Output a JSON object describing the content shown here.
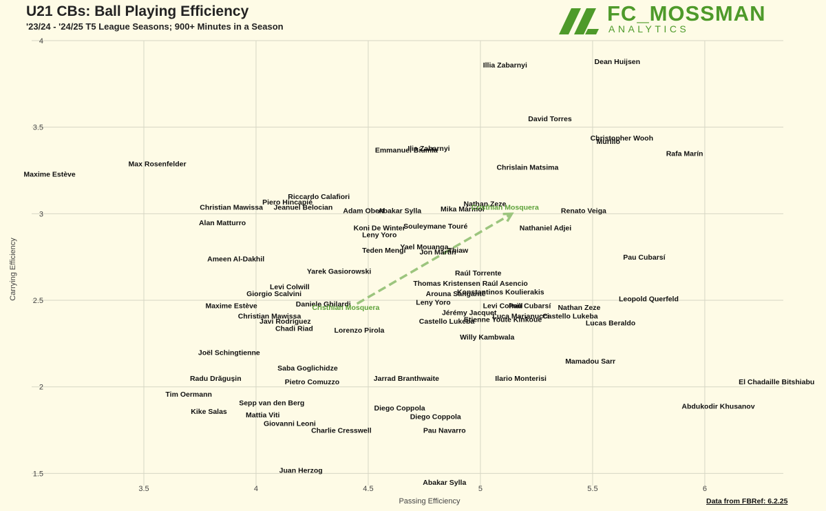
{
  "header": {
    "title": "U21 CBs: Ball Playing Efficiency",
    "subtitle": "'23/24 - '24/25 T5 League Seasons; 900+ Minutes in a Season"
  },
  "logo": {
    "main": "FC_MOSSMAN",
    "sub": "ANALYTICS",
    "color": "#4e9a2a"
  },
  "source": "Data from FBRef: 6.2.25",
  "colors": {
    "background": "#fefbe6",
    "grid": "#d6d6c4",
    "highlight": "#5da23a",
    "arrow": "#9cc57e"
  },
  "chart_data": {
    "type": "scatter",
    "title": "U21 CBs: Ball Playing Efficiency",
    "xlabel": "Passing Efficiency",
    "ylabel": "Carrying Efficiency",
    "xlim": [
      3.0,
      6.35
    ],
    "ylim": [
      1.43,
      4.0
    ],
    "xticks": [
      3.5,
      4,
      4.5,
      5,
      5.5,
      6
    ],
    "yticks": [
      1.5,
      2,
      2.5,
      3,
      3.5,
      4
    ],
    "grid": true,
    "points": [
      {
        "name": "Illia Zabarnyi",
        "x": 5.11,
        "y": 3.86
      },
      {
        "name": "Dean Huijsen",
        "x": 5.61,
        "y": 3.88
      },
      {
        "name": "David Torres",
        "x": 5.31,
        "y": 3.55
      },
      {
        "name": "Christopher Wooh",
        "x": 5.63,
        "y": 3.44
      },
      {
        "name": "Murillo",
        "x": 5.57,
        "y": 3.42
      },
      {
        "name": "Rafa Marín",
        "x": 5.91,
        "y": 3.35
      },
      {
        "name": "Emmanuel Biumla",
        "x": 4.67,
        "y": 3.37
      },
      {
        "name": "Ilia Zabarnyi",
        "x": 4.77,
        "y": 3.38
      },
      {
        "name": "Chrislain Matsima",
        "x": 5.21,
        "y": 3.27
      },
      {
        "name": "Max Rosenfelder",
        "x": 3.56,
        "y": 3.29
      },
      {
        "name": "Maxime Estève",
        "x": 3.08,
        "y": 3.23
      },
      {
        "name": "Riccardo Calafiori",
        "x": 4.28,
        "y": 3.1
      },
      {
        "name": "Piero Hincapié",
        "x": 4.14,
        "y": 3.07
      },
      {
        "name": "Jeanuel Belocian",
        "x": 4.21,
        "y": 3.04
      },
      {
        "name": "Christian Mawissa",
        "x": 3.89,
        "y": 3.04
      },
      {
        "name": "Adam Obert",
        "x": 4.48,
        "y": 3.02
      },
      {
        "name": "Abakar Sylla",
        "x": 4.64,
        "y": 3.02
      },
      {
        "name": "Mika Mármol",
        "x": 4.92,
        "y": 3.03
      },
      {
        "name": "Nathan Zeze",
        "x": 5.02,
        "y": 3.06
      },
      {
        "name": "Cristhian Mosquera",
        "x": 5.11,
        "y": 3.04,
        "highlight": true
      },
      {
        "name": "Renato Veiga",
        "x": 5.46,
        "y": 3.02
      },
      {
        "name": "Alan Matturro",
        "x": 3.85,
        "y": 2.95
      },
      {
        "name": "Koni De Winter",
        "x": 4.55,
        "y": 2.92
      },
      {
        "name": "Souleymane Touré",
        "x": 4.8,
        "y": 2.93
      },
      {
        "name": "Leny Yoro",
        "x": 4.55,
        "y": 2.88
      },
      {
        "name": "Nathaniel Adjei",
        "x": 5.29,
        "y": 2.92
      },
      {
        "name": "Teden Mengi",
        "x": 4.57,
        "y": 2.79
      },
      {
        "name": "Yael Mouanga",
        "x": 4.75,
        "y": 2.81
      },
      {
        "name": "Jon Martín",
        "x": 4.81,
        "y": 2.78
      },
      {
        "name": "Thiaw",
        "x": 4.9,
        "y": 2.79
      },
      {
        "name": "Ameen Al-Dakhil",
        "x": 3.91,
        "y": 2.74
      },
      {
        "name": "Pau Cubarsí",
        "x": 5.73,
        "y": 2.75
      },
      {
        "name": "Yarek Gasiorowski",
        "x": 4.37,
        "y": 2.67
      },
      {
        "name": "Raúl Torrente",
        "x": 4.99,
        "y": 2.66
      },
      {
        "name": "Raúl Asencio",
        "x": 5.11,
        "y": 2.6
      },
      {
        "name": "Thomas Kristensen",
        "x": 4.85,
        "y": 2.6
      },
      {
        "name": "Levi Colwill",
        "x": 4.15,
        "y": 2.58
      },
      {
        "name": "Konstantinos Koulierakis",
        "x": 5.09,
        "y": 2.55
      },
      {
        "name": "Giorgio Scalvini",
        "x": 4.08,
        "y": 2.54
      },
      {
        "name": "Arouna Sanganté",
        "x": 4.89,
        "y": 2.54
      },
      {
        "name": "Leopold Querfeld",
        "x": 5.75,
        "y": 2.51
      },
      {
        "name": "Daniele Ghilardi",
        "x": 4.3,
        "y": 2.48
      },
      {
        "name": "Leny Yoro",
        "x": 4.79,
        "y": 2.49
      },
      {
        "name": "Levi Colwill",
        "x": 5.1,
        "y": 2.47
      },
      {
        "name": "Pau Cubarsí",
        "x": 5.22,
        "y": 2.47
      },
      {
        "name": "Maxime Estève",
        "x": 3.89,
        "y": 2.47
      },
      {
        "name": "Cristhian Mosquera",
        "x": 4.4,
        "y": 2.46,
        "highlight": true
      },
      {
        "name": "Nathan Zeze",
        "x": 5.44,
        "y": 2.46
      },
      {
        "name": "Jérémy Jacquet",
        "x": 4.95,
        "y": 2.43
      },
      {
        "name": "Christian Mawissa",
        "x": 4.06,
        "y": 2.41
      },
      {
        "name": "Luca Marianucci",
        "x": 5.18,
        "y": 2.41
      },
      {
        "name": "Castello Lukeba",
        "x": 5.4,
        "y": 2.41
      },
      {
        "name": "Javi Rodríguez",
        "x": 4.13,
        "y": 2.38
      },
      {
        "name": "Castello Lukeba",
        "x": 4.85,
        "y": 2.38
      },
      {
        "name": "Etienne Youte Kinkoue",
        "x": 5.1,
        "y": 2.39
      },
      {
        "name": "Lucas Beraldo",
        "x": 5.58,
        "y": 2.37
      },
      {
        "name": "Chadi Riad",
        "x": 4.17,
        "y": 2.34
      },
      {
        "name": "Lorenzo Pirola",
        "x": 4.46,
        "y": 2.33
      },
      {
        "name": "Willy Kambwala",
        "x": 5.03,
        "y": 2.29
      },
      {
        "name": "Joël Schingtienne",
        "x": 3.88,
        "y": 2.2
      },
      {
        "name": "Mamadou Sarr",
        "x": 5.49,
        "y": 2.15
      },
      {
        "name": "Saba Goglichidze",
        "x": 4.23,
        "y": 2.11
      },
      {
        "name": "Radu Drăgușin",
        "x": 3.82,
        "y": 2.05
      },
      {
        "name": "Jarrad Branthwaite",
        "x": 4.67,
        "y": 2.05
      },
      {
        "name": "Ilario Monterisi",
        "x": 5.18,
        "y": 2.05
      },
      {
        "name": "Pietro Comuzzo",
        "x": 4.25,
        "y": 2.03
      },
      {
        "name": "El Chadaille Bitshiabu",
        "x": 6.32,
        "y": 2.03
      },
      {
        "name": "Tim Oermann",
        "x": 3.7,
        "y": 1.96
      },
      {
        "name": "Sepp van den Berg",
        "x": 4.07,
        "y": 1.91
      },
      {
        "name": "Abdukodir Khusanov",
        "x": 6.06,
        "y": 1.89
      },
      {
        "name": "Diego Coppola",
        "x": 4.64,
        "y": 1.88
      },
      {
        "name": "Kike Salas",
        "x": 3.79,
        "y": 1.86
      },
      {
        "name": "Mattia Viti",
        "x": 4.03,
        "y": 1.84
      },
      {
        "name": "Diego Coppola",
        "x": 4.8,
        "y": 1.83
      },
      {
        "name": "Giovanni Leoni",
        "x": 4.15,
        "y": 1.79
      },
      {
        "name": "Charlie Cresswell",
        "x": 4.38,
        "y": 1.75
      },
      {
        "name": "Pau Navarro",
        "x": 4.84,
        "y": 1.75
      },
      {
        "name": "Juan Herzog",
        "x": 4.2,
        "y": 1.52
      },
      {
        "name": "Abakar Sylla",
        "x": 4.84,
        "y": 1.45
      }
    ],
    "arrow": {
      "from": {
        "x": 4.45,
        "y": 2.48
      },
      "to": {
        "x": 5.14,
        "y": 3.0
      }
    }
  }
}
